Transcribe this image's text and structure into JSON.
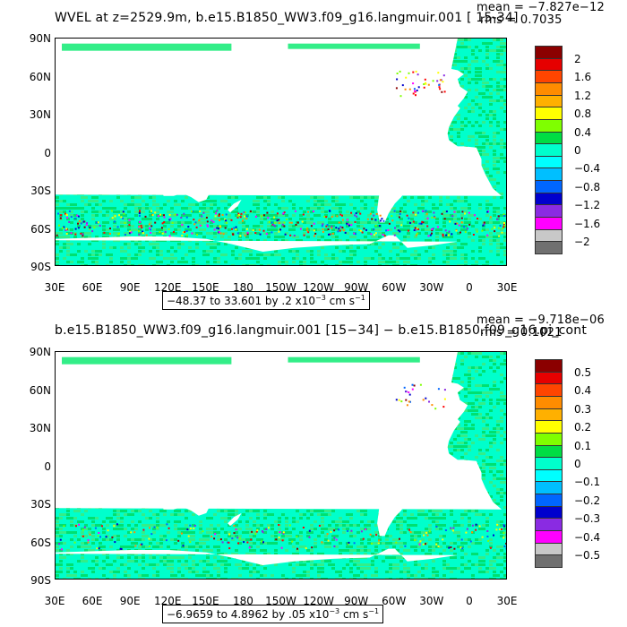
{
  "panels": [
    {
      "title": "WVEL at z=2529.9m, b.e15.B1850_WW3.f09_g16.langmuir.001 [ 15-34]",
      "mean": "mean = −7.827e−12",
      "rms": "rms = 0.7035",
      "range_text": "−48.37 to 33.601 by .2 x10",
      "range_exp": "−3",
      "range_unit": " cm s",
      "range_unit_exp": "−1",
      "colorbar_labels": [
        "2",
        "1.6",
        "1.2",
        "0.8",
        "0.4",
        "0",
        "−0.4",
        "−0.8",
        "−1.2",
        "−1.6",
        "−2"
      ]
    },
    {
      "title": "b.e15.B1850_WW3.f09_g16.langmuir.001 [15−34] − b.e15.B1850.f09_g16.pi_cont",
      "mean": "mean = −9.718e−06",
      "rms": "rms = 0.1021",
      "range_text": "−6.9659 to 4.8962 by .05 x10",
      "range_exp": "−3",
      "range_unit": " cm s",
      "range_unit_exp": "−1",
      "colorbar_labels": [
        "0.5",
        "0.4",
        "0.3",
        "0.2",
        "0.1",
        "0",
        "−0.1",
        "−0.2",
        "−0.3",
        "−0.4",
        "−0.5"
      ]
    }
  ],
  "axes": {
    "y_ticks": [
      "90N",
      "60N",
      "30N",
      "0",
      "30S",
      "60S",
      "90S"
    ],
    "x_ticks": [
      "30E",
      "60E",
      "90E",
      "120E",
      "150E",
      "180",
      "150W",
      "120W",
      "90W",
      "60W",
      "30W",
      "0",
      "30E"
    ]
  },
  "colors": {
    "colorbar": [
      "#8b0000",
      "#e60000",
      "#ff4500",
      "#ff8c00",
      "#ffb000",
      "#ffff00",
      "#7fff00",
      "#00dd44",
      "#00ffcc",
      "#00ffff",
      "#00bfff",
      "#0066ff",
      "#0000cd",
      "#8a2be2",
      "#ff00ff",
      "#c8c8c8",
      "#707070"
    ]
  },
  "chart_data": [
    {
      "type": "heatmap",
      "title": "WVEL at z=2529.9m, b.e15.B1850_WW3.f09_g16.langmuir.001 [ 15-34]",
      "x_ticks": [
        "30E",
        "60E",
        "90E",
        "120E",
        "150E",
        "180",
        "150W",
        "120W",
        "90W",
        "60W",
        "30W",
        "0",
        "30E"
      ],
      "y_ticks": [
        "90N",
        "60N",
        "30N",
        "0",
        "30S",
        "60S",
        "90S"
      ],
      "stats": {
        "mean": -7.827e-12,
        "rms": 0.7035
      },
      "range": {
        "min": -48.37,
        "max": 33.601,
        "interval": 0.2
      },
      "colorbar": [
        2,
        1.6,
        1.2,
        0.8,
        0.4,
        0,
        -0.4,
        -0.8,
        -1.2,
        -1.6,
        -2
      ],
      "units": "x10^-3 cm s^-1"
    },
    {
      "type": "heatmap",
      "title": "b.e15.B1850_WW3.f09_g16.langmuir.001 [15−34] − b.e15.B1850.f09_g16.pi_cont",
      "x_ticks": [
        "30E",
        "60E",
        "90E",
        "120E",
        "150E",
        "180",
        "150W",
        "120W",
        "90W",
        "60W",
        "30W",
        "0",
        "30E"
      ],
      "y_ticks": [
        "90N",
        "60N",
        "30N",
        "0",
        "30S",
        "60S",
        "90S"
      ],
      "stats": {
        "mean": -9.718e-06,
        "rms": 0.1021
      },
      "range": {
        "min": -6.9659,
        "max": 4.8962,
        "interval": 0.05
      },
      "colorbar": [
        0.5,
        0.4,
        0.3,
        0.2,
        0.1,
        0,
        -0.1,
        -0.2,
        -0.3,
        -0.4,
        -0.5
      ],
      "units": "x10^-3 cm s^-1"
    }
  ]
}
